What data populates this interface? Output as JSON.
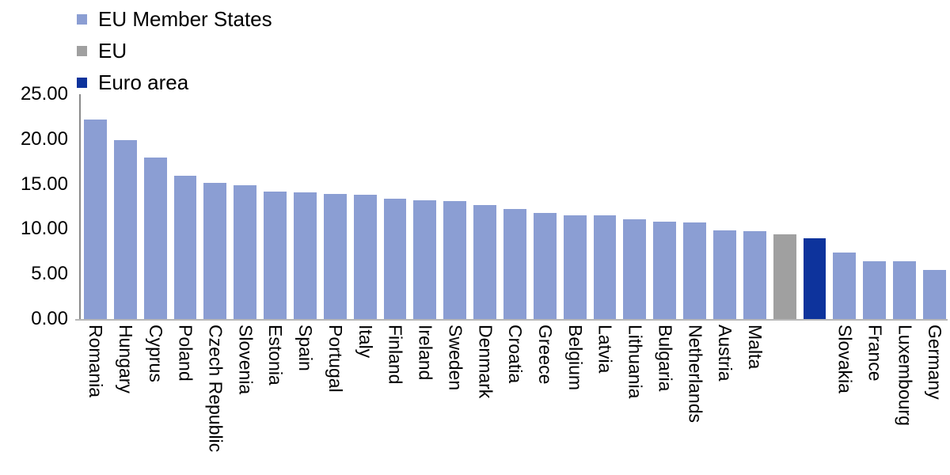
{
  "chart_data": {
    "type": "bar",
    "title": "",
    "xlabel": "",
    "ylabel": "",
    "ylim": [
      0,
      25
    ],
    "y_ticks": [
      "25.00",
      "20.00",
      "15.00",
      "10.00",
      "5.00",
      "0.00"
    ],
    "grid": false,
    "legend_position": "top-left",
    "legend": [
      {
        "key": "member",
        "label": "EU Member States",
        "color": "#8B9ED3"
      },
      {
        "key": "eu",
        "label": "EU",
        "color": "#A0A0A0"
      },
      {
        "key": "euro_area",
        "label": "Euro area",
        "color": "#0D339C"
      }
    ],
    "bars": [
      {
        "name": "Romania",
        "axis_label": "Romania",
        "value": 22.2,
        "series": "member"
      },
      {
        "name": "Hungary",
        "axis_label": "Hungary",
        "value": 19.9,
        "series": "member"
      },
      {
        "name": "Cyprus",
        "axis_label": "Cyprus",
        "value": 18.0,
        "series": "member"
      },
      {
        "name": "Poland",
        "axis_label": "Poland",
        "value": 15.9,
        "series": "member"
      },
      {
        "name": "Czech Republic",
        "axis_label": "Czech Republic",
        "value": 15.1,
        "series": "member"
      },
      {
        "name": "Slovenia",
        "axis_label": "Slovenia",
        "value": 14.9,
        "series": "member"
      },
      {
        "name": "Estonia",
        "axis_label": "Estonia",
        "value": 14.2,
        "series": "member"
      },
      {
        "name": "Spain",
        "axis_label": "Spain",
        "value": 14.1,
        "series": "member"
      },
      {
        "name": "Portugal",
        "axis_label": "Portugal",
        "value": 13.9,
        "series": "member"
      },
      {
        "name": "Italy",
        "axis_label": "Italy",
        "value": 13.8,
        "series": "member"
      },
      {
        "name": "Finland",
        "axis_label": "Finland",
        "value": 13.4,
        "series": "member"
      },
      {
        "name": "Ireland",
        "axis_label": "Ireland",
        "value": 13.2,
        "series": "member"
      },
      {
        "name": "Sweden",
        "axis_label": "Sweden",
        "value": 13.1,
        "series": "member"
      },
      {
        "name": "Denmark",
        "axis_label": "Denmark",
        "value": 12.7,
        "series": "member"
      },
      {
        "name": "Croatia",
        "axis_label": "Croatia",
        "value": 12.2,
        "series": "member"
      },
      {
        "name": "Greece",
        "axis_label": "Greece",
        "value": 11.8,
        "series": "member"
      },
      {
        "name": "Belgium",
        "axis_label": "Belgium",
        "value": 11.5,
        "series": "member"
      },
      {
        "name": "Latvia",
        "axis_label": "Latvia",
        "value": 11.5,
        "series": "member"
      },
      {
        "name": "Lithuania",
        "axis_label": "Lithuania",
        "value": 11.1,
        "series": "member"
      },
      {
        "name": "Bulgaria",
        "axis_label": "Bulgaria",
        "value": 10.8,
        "series": "member"
      },
      {
        "name": "Netherlands",
        "axis_label": "Netherlands",
        "value": 10.7,
        "series": "member"
      },
      {
        "name": "Austria",
        "axis_label": "Austria",
        "value": 9.9,
        "series": "member"
      },
      {
        "name": "Malta",
        "axis_label": "Malta",
        "value": 9.8,
        "series": "member"
      },
      {
        "name": "EU",
        "axis_label": "",
        "value": 9.4,
        "series": "eu"
      },
      {
        "name": "Euro area",
        "axis_label": "",
        "value": 9.0,
        "series": "euro_area"
      },
      {
        "name": "Slovakia",
        "axis_label": "Slovakia",
        "value": 7.4,
        "series": "member"
      },
      {
        "name": "France",
        "axis_label": "France",
        "value": 6.4,
        "series": "member"
      },
      {
        "name": "Luxembourg",
        "axis_label": "Luxembourg",
        "value": 6.4,
        "series": "member"
      },
      {
        "name": "Germany",
        "axis_label": "Germany",
        "value": 5.5,
        "series": "member"
      }
    ]
  },
  "colors": {
    "member_bar": "#8B9ED3",
    "eu_bar": "#A0A0A0",
    "euro_area_bar": "#0D339C",
    "axis_line": "#8A8A8A",
    "baseline": "#B8B8B8",
    "text": "#000000",
    "background": "#FFFFFF"
  }
}
